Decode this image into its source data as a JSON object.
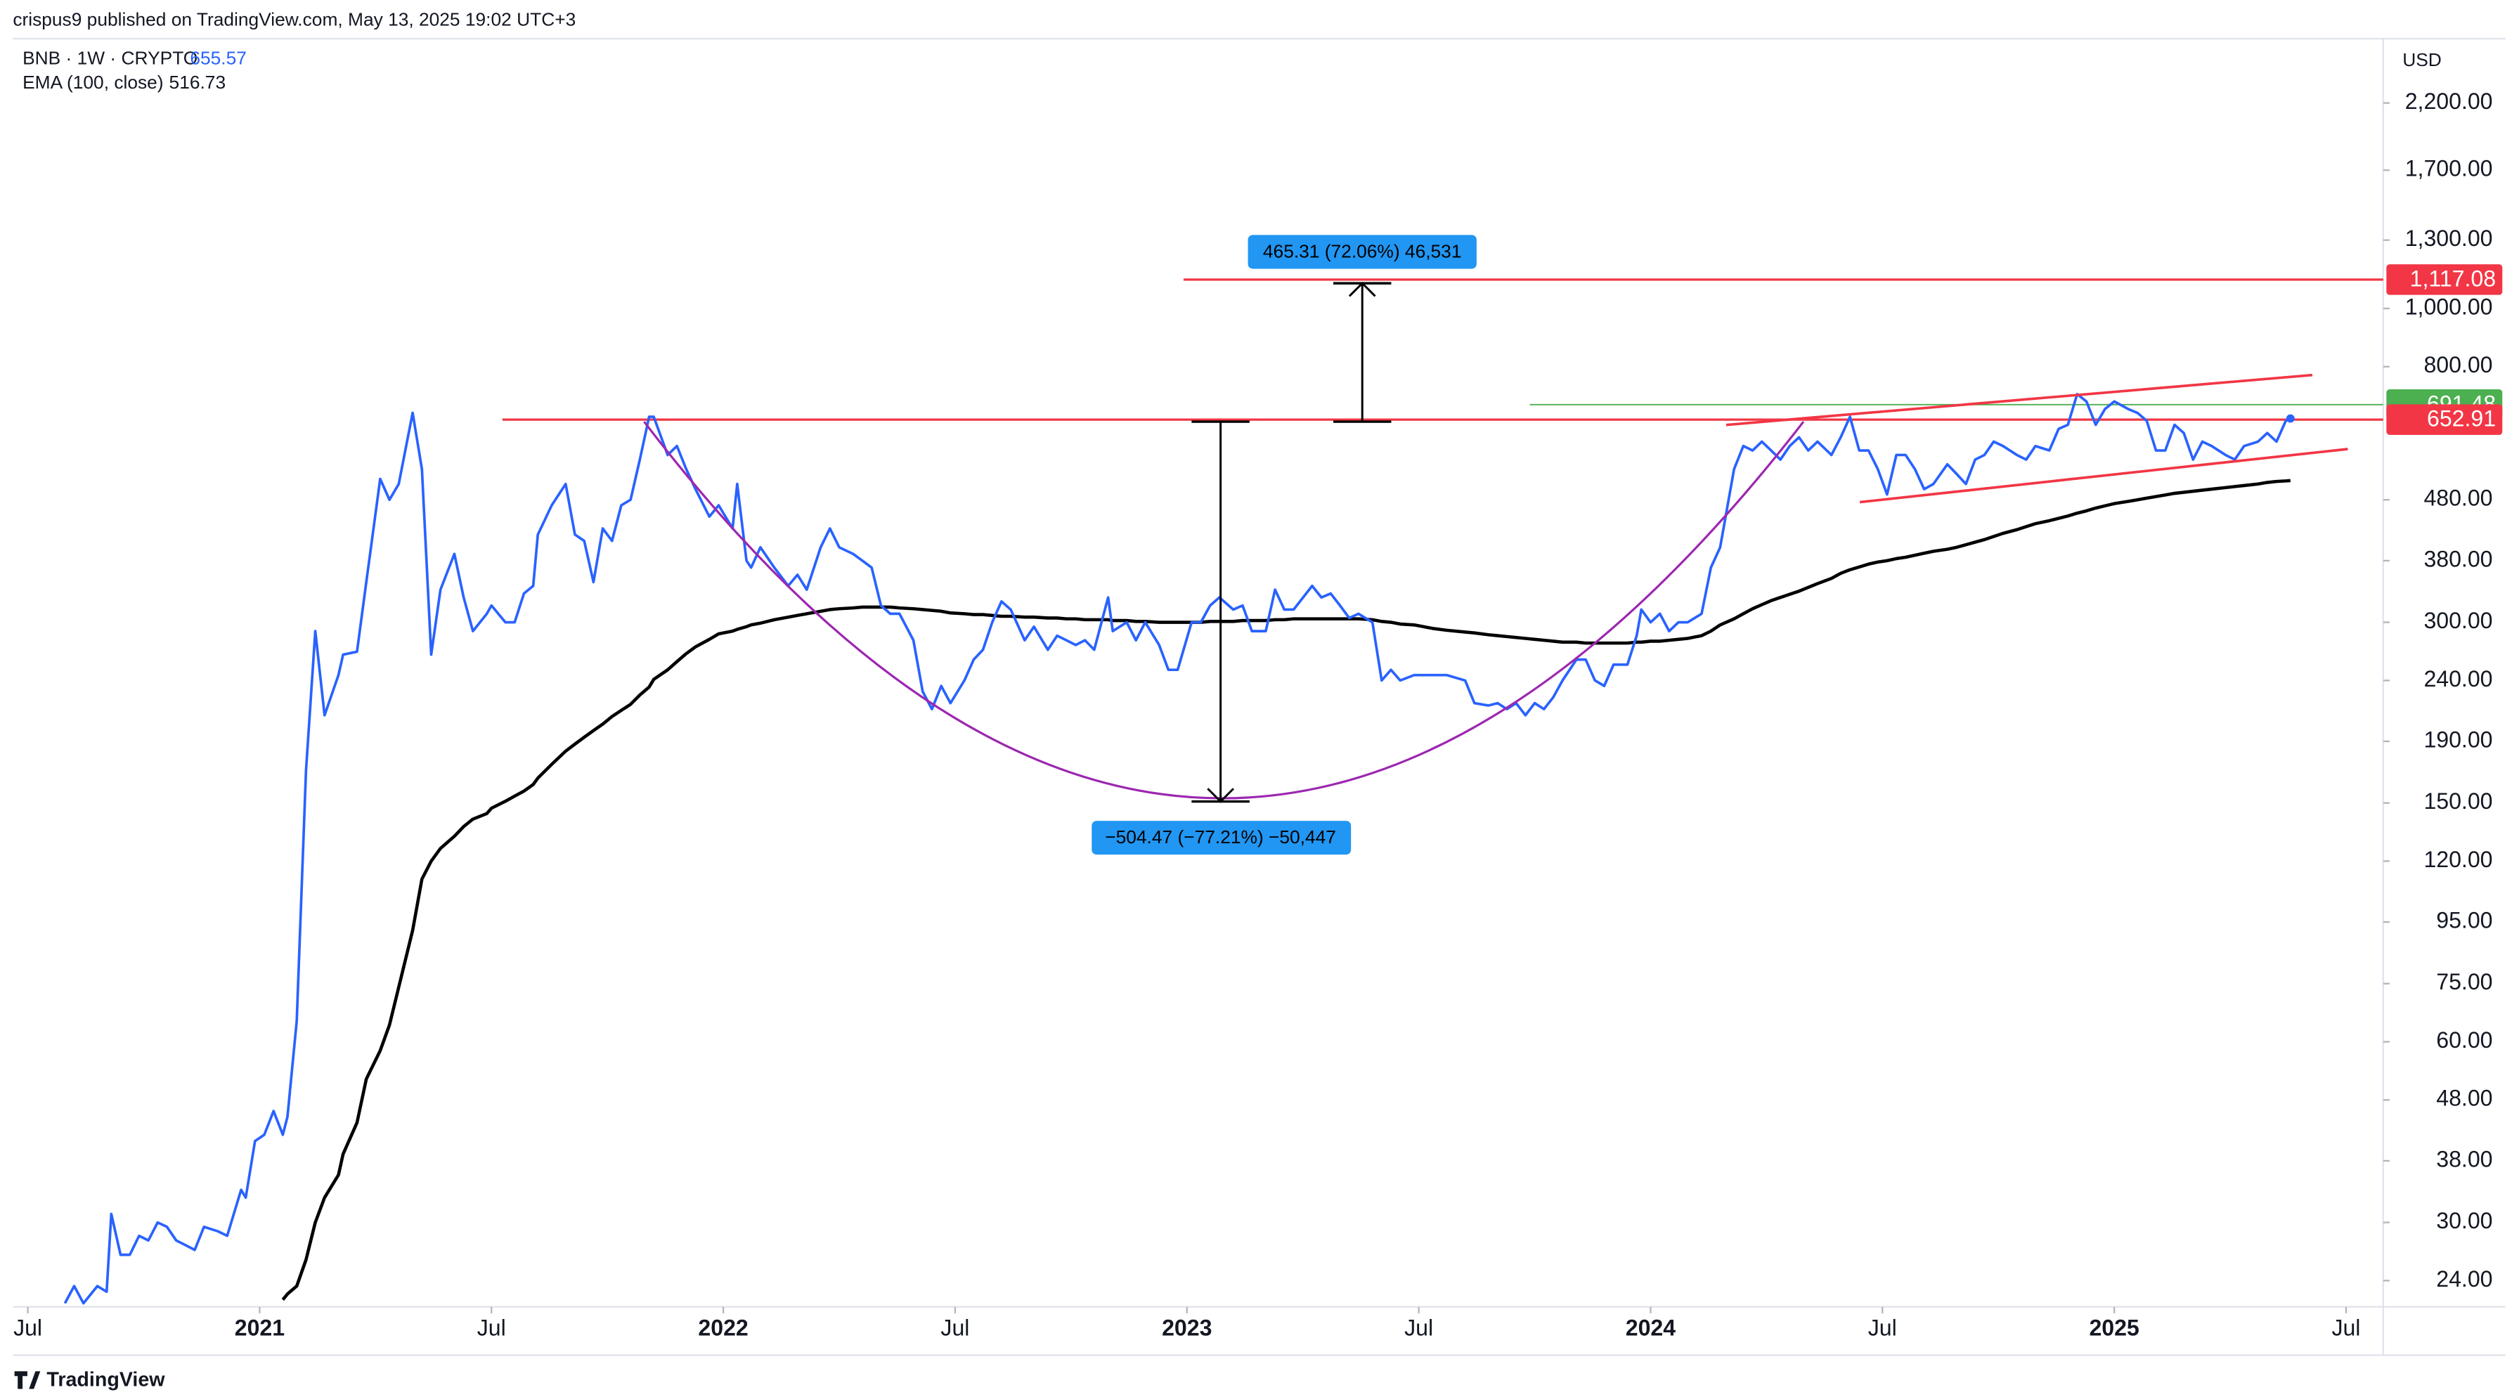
{
  "header": {
    "publisher": "crispus9 published on TradingView.com, May 13, 2025 19:02 UTC+3",
    "currency": "USD"
  },
  "footer": {
    "brand": "TradingView"
  },
  "chart_data": {
    "type": "line",
    "log_scale": true,
    "grid": false,
    "xlim": [
      2020.44,
      2025.58
    ],
    "ylim": [
      21.7,
      2816
    ],
    "xticks": [
      {
        "value": 2020.5,
        "label": "Jul"
      },
      2021,
      {
        "value": 2021.5,
        "label": "Jul"
      },
      2022,
      {
        "value": 2022.5,
        "label": "Jul"
      },
      2023,
      {
        "value": 2023.5,
        "label": "Jul"
      },
      2024,
      {
        "value": 2024.5,
        "label": "Jul"
      },
      2025,
      {
        "value": 2025.5,
        "label": "Jul"
      }
    ],
    "yticks": [
      {
        "value": 2200,
        "label": "2,200.00"
      },
      {
        "value": 1700,
        "label": "1,700.00"
      },
      {
        "value": 1300,
        "label": "1,300.00"
      },
      {
        "value": 1000,
        "label": "1,000.00"
      },
      {
        "value": 800,
        "label": "800.00"
      },
      {
        "value": 480,
        "label": "480.00"
      },
      {
        "value": 380,
        "label": "380.00"
      },
      {
        "value": 300,
        "label": "300.00"
      },
      {
        "value": 240,
        "label": "240.00"
      },
      {
        "value": 190,
        "label": "190.00"
      },
      {
        "value": 150,
        "label": "150.00"
      },
      {
        "value": 120,
        "label": "120.00"
      },
      {
        "value": 95,
        "label": "95.00"
      },
      {
        "value": 75,
        "label": "75.00"
      },
      {
        "value": 60,
        "label": "60.00"
      },
      {
        "value": 48,
        "label": "48.00"
      },
      {
        "value": 38,
        "label": "38.00"
      },
      {
        "value": 30,
        "label": "30.00"
      },
      {
        "value": 24,
        "label": "24.00"
      }
    ],
    "levels": [
      {
        "value": 1117.08,
        "label": "1,117.08",
        "color": "#f23645"
      },
      {
        "value": 691.48,
        "color": "#4caf50"
      },
      {
        "value": 652.91,
        "color": "#f23645"
      }
    ],
    "annotations": [
      "465.31 (72.06%) 46,531",
      "−504.47 (−77.21%) −50,447"
    ],
    "x": [
      2020.58,
      2020.6,
      2020.62,
      2020.65,
      2020.67,
      2020.68,
      2020.7,
      2020.72,
      2020.74,
      2020.76,
      2020.78,
      2020.8,
      2020.82,
      2020.84,
      2020.86,
      2020.88,
      2020.91,
      2020.93,
      2020.96,
      2020.97,
      2020.99,
      2021.01,
      2021.03,
      2021.05,
      2021.06,
      2021.08,
      2021.1,
      2021.12,
      2021.14,
      2021.17,
      2021.18,
      2021.21,
      2021.23,
      2021.26,
      2021.28,
      2021.3,
      2021.33,
      2021.35,
      2021.37,
      2021.39,
      2021.42,
      2021.44,
      2021.46,
      2021.49,
      2021.5,
      2021.53,
      2021.55,
      2021.57,
      2021.59,
      2021.6,
      2021.63,
      2021.66,
      2021.68,
      2021.7,
      2021.72,
      2021.74,
      2021.76,
      2021.78,
      2021.8,
      2021.82,
      2021.84,
      2021.85,
      2021.88,
      2021.9,
      2021.92,
      2021.94,
      2021.97,
      2021.99,
      2022.02,
      2022.03,
      2022.05,
      2022.06,
      2022.08,
      2022.11,
      2022.14,
      2022.16,
      2022.18,
      2022.21,
      2022.23,
      2022.25,
      2022.28,
      2022.3,
      2022.32,
      2022.34,
      2022.36,
      2022.38,
      2022.41,
      2022.43,
      2022.45,
      2022.47,
      2022.49,
      2022.52,
      2022.54,
      2022.56,
      2022.58,
      2022.6,
      2022.62,
      2022.65,
      2022.67,
      2022.7,
      2022.72,
      2022.74,
      2022.76,
      2022.78,
      2022.8,
      2022.83,
      2022.84,
      2022.87,
      2022.89,
      2022.91,
      2022.94,
      2022.96,
      2022.98,
      2023.01,
      2023.03,
      2023.05,
      2023.07,
      2023.1,
      2023.12,
      2023.14,
      2023.17,
      2023.19,
      2023.21,
      2023.23,
      2023.27,
      2023.29,
      2023.31,
      2023.33,
      2023.35,
      2023.37,
      2023.4,
      2023.42,
      2023.44,
      2023.46,
      2023.49,
      2023.51,
      2023.53,
      2023.56,
      2023.6,
      2023.62,
      2023.65,
      2023.67,
      2023.69,
      2023.71,
      2023.73,
      2023.75,
      2023.77,
      2023.79,
      2023.81,
      2023.84,
      2023.86,
      2023.88,
      2023.9,
      2023.92,
      2023.95,
      2023.97,
      2023.98,
      2024.0,
      2024.02,
      2024.04,
      2024.06,
      2024.08,
      2024.11,
      2024.13,
      2024.15,
      2024.18,
      2024.2,
      2024.22,
      2024.24,
      2024.26,
      2024.28,
      2024.3,
      2024.32,
      2024.34,
      2024.36,
      2024.39,
      2024.41,
      2024.43,
      2024.45,
      2024.47,
      2024.49,
      2024.51,
      2024.53,
      2024.55,
      2024.57,
      2024.59,
      2024.61,
      2024.64,
      2024.66,
      2024.68,
      2024.7,
      2024.72,
      2024.74,
      2024.76,
      2024.79,
      2024.81,
      2024.83,
      2024.86,
      2024.88,
      2024.9,
      2024.92,
      2024.94,
      2024.96,
      2024.98,
      2025.0,
      2025.03,
      2025.05,
      2025.07,
      2025.09,
      2025.11,
      2025.13,
      2025.15,
      2025.17,
      2025.19,
      2025.21,
      2025.24,
      2025.26,
      2025.28,
      2025.31,
      2025.33,
      2025.35,
      2025.37,
      2025.38
    ],
    "series": [
      {
        "name": "BNB · 1W · CRYPTO",
        "color": "#2962ff",
        "values": [
          22,
          23.5,
          22,
          23.5,
          23,
          31,
          26.5,
          26.5,
          28.5,
          28,
          30,
          29.5,
          28,
          27.5,
          27,
          29.5,
          29,
          28.5,
          34,
          33,
          41,
          42,
          46,
          42,
          45,
          65,
          170,
          290,
          210,
          245,
          265,
          268,
          350,
          520,
          480,
          510,
          670,
          540,
          265,
          340,
          390,
          330,
          290,
          310,
          320,
          300,
          300,
          335,
          345,
          420,
          470,
          510,
          420,
          410,
          350,
          430,
          410,
          470,
          480,
          560,
          660,
          660,
          570,
          590,
          540,
          500,
          450,
          470,
          430,
          510,
          380,
          370,
          400,
          370,
          345,
          360,
          340,
          400,
          430,
          400,
          390,
          380,
          370,
          320,
          310,
          310,
          280,
          230,
          215,
          235,
          220,
          240,
          260,
          270,
          300,
          325,
          315,
          280,
          295,
          270,
          285,
          280,
          275,
          280,
          270,
          330,
          290,
          300,
          280,
          300,
          275,
          250,
          250,
          300,
          300,
          320,
          330,
          315,
          320,
          290,
          290,
          340,
          315,
          315,
          345,
          330,
          335,
          320,
          305,
          310,
          300,
          240,
          250,
          240,
          245,
          245,
          245,
          245,
          240,
          220,
          218,
          220,
          215,
          220,
          210,
          220,
          215,
          225,
          240,
          260,
          260,
          240,
          235,
          255,
          255,
          285,
          315,
          300,
          310,
          290,
          300,
          300,
          310,
          370,
          400,
          540,
          590,
          580,
          600,
          580,
          560,
          590,
          610,
          580,
          600,
          570,
          610,
          660,
          580,
          580,
          540,
          490,
          570,
          570,
          540,
          500,
          510,
          550,
          530,
          510,
          560,
          570,
          600,
          590,
          570,
          560,
          590,
          580,
          630,
          640,
          720,
          700,
          640,
          680,
          700,
          680,
          670,
          650,
          580,
          580,
          640,
          620,
          560,
          600,
          590,
          570,
          560,
          590,
          600,
          620,
          600,
          650,
          655.57
        ]
      },
      {
        "name": "EMA (100, close)",
        "color": "#000000",
        "values": [
          null,
          null,
          null,
          null,
          null,
          null,
          null,
          null,
          null,
          null,
          null,
          null,
          null,
          null,
          null,
          null,
          null,
          null,
          null,
          null,
          null,
          null,
          null,
          22.3,
          22.8,
          23.5,
          26,
          30,
          33,
          36,
          39,
          44,
          52,
          58,
          64,
          74,
          92,
          112,
          120,
          126,
          132,
          137,
          141,
          144,
          147,
          151,
          154,
          157,
          161,
          165,
          174,
          183,
          188,
          193,
          198,
          203,
          209,
          214,
          219,
          227,
          234,
          241,
          250,
          258,
          266,
          273,
          281,
          287,
          290,
          292,
          295,
          297,
          299,
          303,
          306,
          308,
          310,
          313,
          315,
          316,
          317,
          318,
          318,
          318,
          318,
          317,
          316,
          315,
          314,
          313,
          311,
          310,
          309,
          309,
          308,
          307,
          307,
          306,
          306,
          305,
          305,
          304,
          304,
          303,
          303,
          303,
          302,
          302,
          301,
          301,
          300,
          300,
          300,
          300,
          300,
          301,
          301,
          301,
          302,
          302,
          302,
          303,
          303,
          304,
          304,
          304,
          304,
          304,
          304,
          304,
          303,
          301,
          300,
          298,
          297,
          295,
          293,
          291,
          289,
          288,
          286,
          285,
          284,
          283,
          282,
          281,
          280,
          279,
          278,
          278,
          277,
          277,
          277,
          277,
          277,
          278,
          278,
          279,
          279,
          280,
          281,
          282,
          285,
          290,
          297,
          304,
          310,
          316,
          321,
          326,
          330,
          334,
          338,
          343,
          348,
          355,
          362,
          367,
          371,
          375,
          378,
          380,
          383,
          385,
          388,
          391,
          394,
          397,
          400,
          404,
          408,
          412,
          417,
          422,
          428,
          433,
          438,
          443,
          447,
          451,
          456,
          460,
          465,
          469,
          473,
          477,
          480,
          483,
          486,
          489,
          492,
          494,
          496,
          498,
          500,
          503,
          505,
          507,
          510,
          513,
          515,
          516,
          516.73
        ]
      }
    ]
  }
}
